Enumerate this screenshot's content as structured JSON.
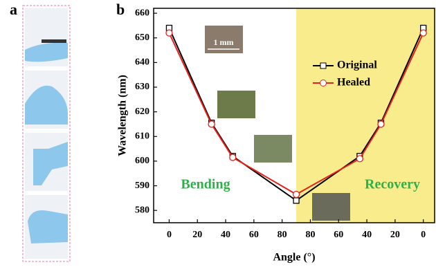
{
  "panels": [
    "a",
    "b"
  ],
  "chart_data": {
    "type": "line",
    "xlabel": "Angle (°)",
    "ylabel": "Wavelength (nm)",
    "x": [
      0,
      30,
      45,
      90,
      135,
      150,
      180
    ],
    "series": [
      {
        "name": "Original",
        "color": "#000000",
        "marker": "square",
        "values": [
          654,
          615.5,
          602,
          584,
          602,
          615.5,
          654
        ]
      },
      {
        "name": "Healed",
        "color": "#e8201a",
        "marker": "circle",
        "values": [
          652,
          615,
          601.5,
          586.5,
          601,
          615,
          652
        ]
      }
    ],
    "xlim": [
      -11,
      188
    ],
    "ylim": [
      575,
      662
    ],
    "xticks": [
      0,
      20,
      40,
      60,
      80,
      {
        "value": 100,
        "label": "80"
      },
      {
        "value": 120,
        "label": "60"
      },
      {
        "value": 140,
        "label": "40"
      },
      {
        "value": 160,
        "label": "20"
      },
      {
        "value": 180,
        "label": "0"
      }
    ],
    "yticks": [
      580,
      590,
      600,
      610,
      620,
      630,
      640,
      650,
      660
    ],
    "shaded_from": 90,
    "shade_color": "#f8ec8c",
    "annotations": [
      "Bending",
      "Recovery",
      "1 mm"
    ]
  }
}
